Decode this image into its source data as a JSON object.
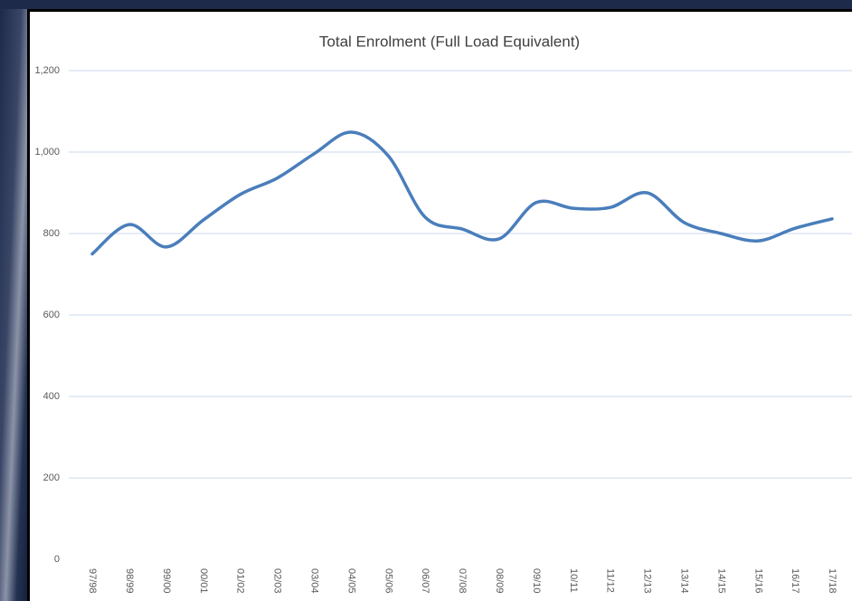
{
  "chart_data": {
    "type": "line",
    "title": "Total Enrolment (Full Load Equivalent)",
    "categories": [
      "97/98",
      "98/99",
      "99/00",
      "00/01",
      "01/02",
      "02/03",
      "03/04",
      "04/05",
      "05/06",
      "06/07",
      "07/08",
      "08/09",
      "09/10",
      "10/11",
      "11/12",
      "12/13",
      "13/14",
      "14/15",
      "15/16",
      "16/17",
      "17/18"
    ],
    "values": [
      750,
      822,
      767,
      833,
      896,
      936,
      996,
      1049,
      991,
      840,
      811,
      787,
      876,
      862,
      864,
      900,
      827,
      800,
      782,
      813,
      836
    ],
    "color": "#4a7ebb",
    "ylim": [
      0,
      1200
    ],
    "yticks": [
      0,
      200,
      400,
      600,
      800,
      {
        "value": 1000,
        "label": "1,000"
      },
      {
        "value": 1200,
        "label": "1,200"
      }
    ],
    "grid": true
  }
}
